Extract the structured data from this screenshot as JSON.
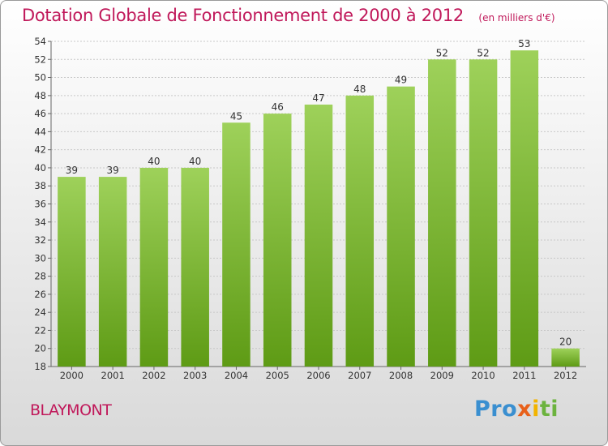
{
  "chart_data": {
    "type": "bar",
    "title": "Dotation Globale de Fonctionnement de 2000 à 2012",
    "subtitle": "(en milliers d'€)",
    "categories": [
      "2000",
      "2001",
      "2002",
      "2003",
      "2004",
      "2005",
      "2006",
      "2007",
      "2008",
      "2009",
      "2010",
      "2011",
      "2012"
    ],
    "values": [
      39,
      39,
      40,
      40,
      45,
      46,
      47,
      48,
      49,
      52,
      52,
      53,
      20
    ],
    "data_labels": [
      "39",
      "39",
      "40",
      "40",
      "45",
      "46",
      "47",
      "48",
      "49",
      "52",
      "52",
      "53",
      "20"
    ],
    "ylim": [
      18,
      54
    ],
    "yticks": [
      "18",
      "20",
      "22",
      "24",
      "26",
      "28",
      "30",
      "32",
      "34",
      "36",
      "38",
      "40",
      "42",
      "44",
      "46",
      "48",
      "50",
      "52",
      "54"
    ],
    "grid": true,
    "xlabel": "",
    "ylabel": "",
    "colors": {
      "bar_top": "#9ed15a",
      "bar_bottom": "#5e9b15",
      "title": "#c0185a",
      "grid": "#c8c8c8"
    }
  },
  "footer": {
    "commune": "BLAYMONT",
    "logo_parts": [
      "Pro",
      "x",
      "i",
      "ti"
    ]
  }
}
